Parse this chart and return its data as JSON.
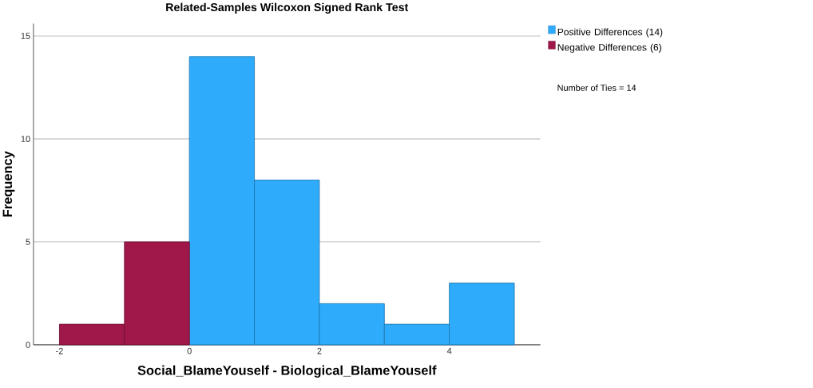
{
  "chart_data": {
    "type": "histogram",
    "title": "Related-Samples Wilcoxon Signed Rank Test",
    "xlabel": "Social_BlameYouself - Biological_BlameYouself",
    "ylabel": "Frequency",
    "bins": [
      -2,
      -1,
      0,
      1,
      2,
      3,
      4,
      5
    ],
    "series": [
      {
        "name": "Positive Differences (14)",
        "color": "#2eacfb",
        "values": [
          null,
          null,
          14,
          8,
          2,
          1,
          3
        ]
      },
      {
        "name": "Negative Differences (6)",
        "color": "#a0174a",
        "values": [
          1,
          5,
          null,
          null,
          null,
          null,
          null
        ]
      }
    ],
    "xlim": [
      -2.4,
      5.4
    ],
    "xticks": [
      -2,
      0,
      2,
      4
    ],
    "ylim": [
      0,
      15.6
    ],
    "yticks": [
      0,
      5,
      10,
      15
    ],
    "grid": "y",
    "legend": "top right",
    "annotations": [
      "Number of Ties = 14"
    ]
  }
}
